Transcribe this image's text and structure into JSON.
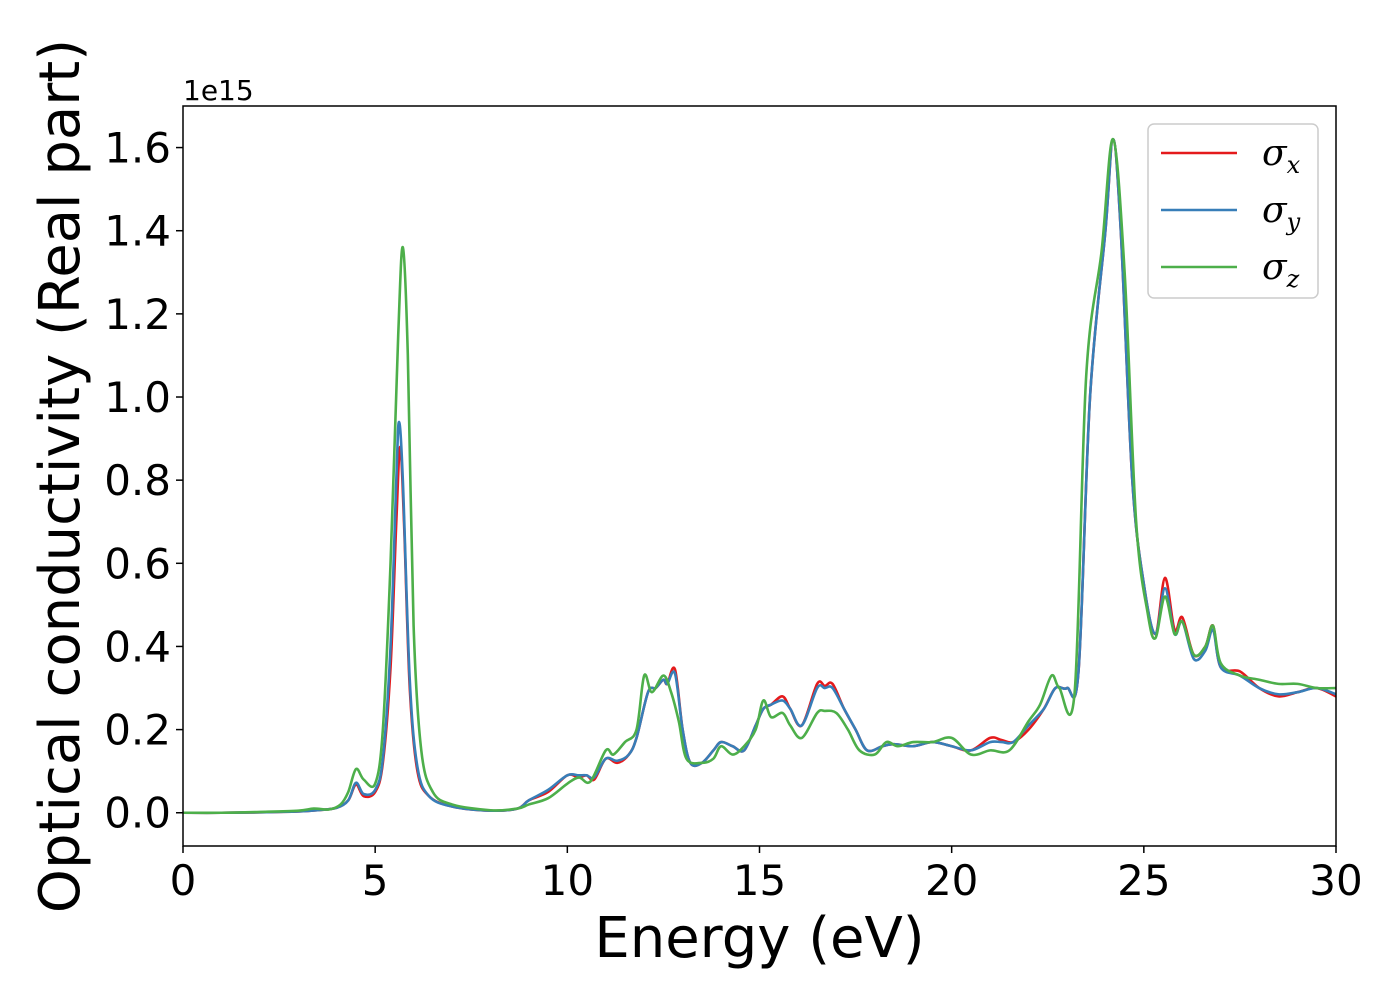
{
  "chart_data": {
    "type": "line",
    "xlabel": "Energy (eV)",
    "ylabel": "Optical conductivity (Real part)",
    "y_offset_label": "1e15",
    "xlim": [
      0,
      30
    ],
    "ylim": [
      -0.08,
      1.7
    ],
    "x_ticks": [
      0,
      5,
      10,
      15,
      20,
      25,
      30
    ],
    "y_ticks": [
      0.0,
      0.2,
      0.4,
      0.6,
      0.8,
      1.0,
      1.2,
      1.4,
      1.6
    ],
    "grid": false,
    "legend_position": "top-right",
    "series": [
      {
        "name": "σx",
        "symbol": "σ",
        "subscript": "x",
        "color": "#e41a1c",
        "points": [
          [
            0,
            0.0
          ],
          [
            1,
            0.0
          ],
          [
            2,
            0.001
          ],
          [
            3,
            0.003
          ],
          [
            3.5,
            0.006
          ],
          [
            4,
            0.012
          ],
          [
            4.3,
            0.03
          ],
          [
            4.5,
            0.068
          ],
          [
            4.7,
            0.04
          ],
          [
            5.0,
            0.05
          ],
          [
            5.2,
            0.12
          ],
          [
            5.4,
            0.35
          ],
          [
            5.55,
            0.7
          ],
          [
            5.65,
            0.88
          ],
          [
            5.75,
            0.7
          ],
          [
            5.9,
            0.3
          ],
          [
            6.1,
            0.1
          ],
          [
            6.4,
            0.04
          ],
          [
            7,
            0.015
          ],
          [
            8,
            0.005
          ],
          [
            8.7,
            0.01
          ],
          [
            9.0,
            0.03
          ],
          [
            9.5,
            0.05
          ],
          [
            10.0,
            0.09
          ],
          [
            10.3,
            0.085
          ],
          [
            10.5,
            0.09
          ],
          [
            10.7,
            0.08
          ],
          [
            11.0,
            0.13
          ],
          [
            11.3,
            0.12
          ],
          [
            11.6,
            0.14
          ],
          [
            11.8,
            0.18
          ],
          [
            12.1,
            0.29
          ],
          [
            12.3,
            0.3
          ],
          [
            12.5,
            0.32
          ],
          [
            12.6,
            0.31
          ],
          [
            12.8,
            0.345
          ],
          [
            13.0,
            0.2
          ],
          [
            13.2,
            0.12
          ],
          [
            13.5,
            0.12
          ],
          [
            13.8,
            0.15
          ],
          [
            14.0,
            0.17
          ],
          [
            14.3,
            0.16
          ],
          [
            14.6,
            0.15
          ],
          [
            14.9,
            0.21
          ],
          [
            15.1,
            0.25
          ],
          [
            15.3,
            0.26
          ],
          [
            15.6,
            0.28
          ],
          [
            15.8,
            0.25
          ],
          [
            16.1,
            0.21
          ],
          [
            16.5,
            0.31
          ],
          [
            16.7,
            0.305
          ],
          [
            16.9,
            0.31
          ],
          [
            17.2,
            0.25
          ],
          [
            17.5,
            0.2
          ],
          [
            17.8,
            0.15
          ],
          [
            18.2,
            0.16
          ],
          [
            18.5,
            0.165
          ],
          [
            19.0,
            0.16
          ],
          [
            19.5,
            0.17
          ],
          [
            20.0,
            0.16
          ],
          [
            20.5,
            0.15
          ],
          [
            21.0,
            0.18
          ],
          [
            21.3,
            0.175
          ],
          [
            21.6,
            0.17
          ],
          [
            22.0,
            0.2
          ],
          [
            22.4,
            0.25
          ],
          [
            22.7,
            0.3
          ],
          [
            23.0,
            0.3
          ],
          [
            23.3,
            0.34
          ],
          [
            23.6,
            1.0
          ],
          [
            24.0,
            1.4
          ],
          [
            24.2,
            1.62
          ],
          [
            24.4,
            1.4
          ],
          [
            24.7,
            0.8
          ],
          [
            25.0,
            0.55
          ],
          [
            25.3,
            0.43
          ],
          [
            25.55,
            0.565
          ],
          [
            25.8,
            0.44
          ],
          [
            26.0,
            0.47
          ],
          [
            26.3,
            0.38
          ],
          [
            26.6,
            0.4
          ],
          [
            26.8,
            0.45
          ],
          [
            27.0,
            0.35
          ],
          [
            27.5,
            0.34
          ],
          [
            28.0,
            0.3
          ],
          [
            28.5,
            0.28
          ],
          [
            29.0,
            0.29
          ],
          [
            29.5,
            0.3
          ],
          [
            30,
            0.28
          ]
        ]
      },
      {
        "name": "σy",
        "symbol": "σ",
        "subscript": "y",
        "color": "#377eb8",
        "points": [
          [
            0,
            0.0
          ],
          [
            1,
            0.0
          ],
          [
            2,
            0.001
          ],
          [
            3,
            0.003
          ],
          [
            3.5,
            0.006
          ],
          [
            4,
            0.012
          ],
          [
            4.3,
            0.03
          ],
          [
            4.5,
            0.072
          ],
          [
            4.7,
            0.045
          ],
          [
            5.0,
            0.055
          ],
          [
            5.2,
            0.13
          ],
          [
            5.4,
            0.4
          ],
          [
            5.55,
            0.8
          ],
          [
            5.62,
            0.94
          ],
          [
            5.72,
            0.8
          ],
          [
            5.9,
            0.32
          ],
          [
            6.1,
            0.11
          ],
          [
            6.4,
            0.04
          ],
          [
            7,
            0.015
          ],
          [
            8,
            0.005
          ],
          [
            8.7,
            0.01
          ],
          [
            9.0,
            0.03
          ],
          [
            9.5,
            0.055
          ],
          [
            10.0,
            0.09
          ],
          [
            10.3,
            0.09
          ],
          [
            10.5,
            0.09
          ],
          [
            10.7,
            0.085
          ],
          [
            11.0,
            0.13
          ],
          [
            11.3,
            0.125
          ],
          [
            11.6,
            0.14
          ],
          [
            11.8,
            0.18
          ],
          [
            12.1,
            0.29
          ],
          [
            12.3,
            0.3
          ],
          [
            12.5,
            0.32
          ],
          [
            12.6,
            0.31
          ],
          [
            12.8,
            0.335
          ],
          [
            13.0,
            0.2
          ],
          [
            13.2,
            0.12
          ],
          [
            13.5,
            0.12
          ],
          [
            13.8,
            0.15
          ],
          [
            14.0,
            0.17
          ],
          [
            14.3,
            0.16
          ],
          [
            14.6,
            0.15
          ],
          [
            14.9,
            0.21
          ],
          [
            15.1,
            0.25
          ],
          [
            15.3,
            0.26
          ],
          [
            15.6,
            0.27
          ],
          [
            15.8,
            0.25
          ],
          [
            16.1,
            0.21
          ],
          [
            16.5,
            0.3
          ],
          [
            16.7,
            0.3
          ],
          [
            16.9,
            0.3
          ],
          [
            17.2,
            0.25
          ],
          [
            17.5,
            0.2
          ],
          [
            17.8,
            0.15
          ],
          [
            18.2,
            0.16
          ],
          [
            18.5,
            0.165
          ],
          [
            19.0,
            0.16
          ],
          [
            19.5,
            0.17
          ],
          [
            20.0,
            0.16
          ],
          [
            20.5,
            0.15
          ],
          [
            21.0,
            0.17
          ],
          [
            21.3,
            0.17
          ],
          [
            21.6,
            0.17
          ],
          [
            22.0,
            0.21
          ],
          [
            22.4,
            0.25
          ],
          [
            22.7,
            0.3
          ],
          [
            23.0,
            0.3
          ],
          [
            23.3,
            0.34
          ],
          [
            23.6,
            1.0
          ],
          [
            24.0,
            1.4
          ],
          [
            24.2,
            1.62
          ],
          [
            24.4,
            1.4
          ],
          [
            24.7,
            0.8
          ],
          [
            25.0,
            0.55
          ],
          [
            25.3,
            0.43
          ],
          [
            25.55,
            0.54
          ],
          [
            25.8,
            0.43
          ],
          [
            26.0,
            0.46
          ],
          [
            26.3,
            0.37
          ],
          [
            26.6,
            0.39
          ],
          [
            26.8,
            0.44
          ],
          [
            27.0,
            0.35
          ],
          [
            27.5,
            0.33
          ],
          [
            28.0,
            0.3
          ],
          [
            28.5,
            0.285
          ],
          [
            29.0,
            0.29
          ],
          [
            29.5,
            0.3
          ],
          [
            30,
            0.285
          ]
        ]
      },
      {
        "name": "σz",
        "symbol": "σ",
        "subscript": "z",
        "color": "#4daf4a",
        "points": [
          [
            0,
            0.0
          ],
          [
            1,
            0.0
          ],
          [
            2,
            0.002
          ],
          [
            3,
            0.005
          ],
          [
            3.4,
            0.01
          ],
          [
            3.8,
            0.008
          ],
          [
            4.1,
            0.02
          ],
          [
            4.3,
            0.05
          ],
          [
            4.5,
            0.105
          ],
          [
            4.7,
            0.08
          ],
          [
            5.0,
            0.07
          ],
          [
            5.2,
            0.2
          ],
          [
            5.4,
            0.6
          ],
          [
            5.6,
            1.15
          ],
          [
            5.72,
            1.36
          ],
          [
            5.85,
            1.1
          ],
          [
            6.0,
            0.45
          ],
          [
            6.2,
            0.15
          ],
          [
            6.5,
            0.05
          ],
          [
            7,
            0.02
          ],
          [
            8,
            0.006
          ],
          [
            8.7,
            0.01
          ],
          [
            9.0,
            0.02
          ],
          [
            9.5,
            0.035
          ],
          [
            10.0,
            0.07
          ],
          [
            10.3,
            0.085
          ],
          [
            10.6,
            0.075
          ],
          [
            11.0,
            0.15
          ],
          [
            11.2,
            0.14
          ],
          [
            11.5,
            0.17
          ],
          [
            11.8,
            0.2
          ],
          [
            12.0,
            0.33
          ],
          [
            12.2,
            0.29
          ],
          [
            12.5,
            0.33
          ],
          [
            12.7,
            0.29
          ],
          [
            12.9,
            0.22
          ],
          [
            13.1,
            0.13
          ],
          [
            13.5,
            0.12
          ],
          [
            13.8,
            0.13
          ],
          [
            14.0,
            0.16
          ],
          [
            14.3,
            0.14
          ],
          [
            14.6,
            0.16
          ],
          [
            14.9,
            0.2
          ],
          [
            15.1,
            0.27
          ],
          [
            15.3,
            0.23
          ],
          [
            15.6,
            0.24
          ],
          [
            15.8,
            0.21
          ],
          [
            16.1,
            0.18
          ],
          [
            16.5,
            0.24
          ],
          [
            16.7,
            0.245
          ],
          [
            17.0,
            0.24
          ],
          [
            17.3,
            0.2
          ],
          [
            17.6,
            0.15
          ],
          [
            18.0,
            0.14
          ],
          [
            18.3,
            0.17
          ],
          [
            18.6,
            0.16
          ],
          [
            19.0,
            0.17
          ],
          [
            19.5,
            0.17
          ],
          [
            20.0,
            0.18
          ],
          [
            20.5,
            0.14
          ],
          [
            21.0,
            0.15
          ],
          [
            21.5,
            0.15
          ],
          [
            22.0,
            0.22
          ],
          [
            22.3,
            0.26
          ],
          [
            22.6,
            0.33
          ],
          [
            22.8,
            0.3
          ],
          [
            23.2,
            0.29
          ],
          [
            23.5,
            1.05
          ],
          [
            23.9,
            1.35
          ],
          [
            24.2,
            1.62
          ],
          [
            24.5,
            1.3
          ],
          [
            24.8,
            0.7
          ],
          [
            25.1,
            0.48
          ],
          [
            25.3,
            0.42
          ],
          [
            25.55,
            0.52
          ],
          [
            25.8,
            0.43
          ],
          [
            26.0,
            0.46
          ],
          [
            26.3,
            0.38
          ],
          [
            26.6,
            0.4
          ],
          [
            26.8,
            0.45
          ],
          [
            27.0,
            0.36
          ],
          [
            27.5,
            0.33
          ],
          [
            28.0,
            0.32
          ],
          [
            28.5,
            0.31
          ],
          [
            29.0,
            0.31
          ],
          [
            29.5,
            0.3
          ],
          [
            30,
            0.3
          ]
        ]
      }
    ]
  }
}
